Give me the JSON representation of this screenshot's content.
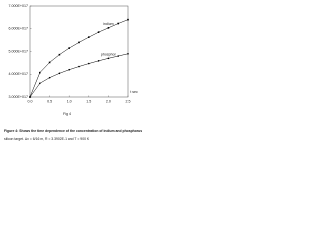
{
  "chart_data": {
    "type": "line",
    "x_label": "t sec",
    "annotation": "Fig 4",
    "caption": [
      "Figure 4: Shows the time dependence of the concentration of indium and phosphorus",
      "silicon target. Δx = 6/16 m, R = 3.3902E-1 and T = 900 K"
    ],
    "x": [
      0,
      0.25,
      0.5,
      0.75,
      1.0,
      1.25,
      1.5,
      1.75,
      2.0,
      2.25,
      2.5
    ],
    "series": [
      {
        "name": "indium",
        "color": "#000000",
        "marker": "square",
        "values": [
          3e+17,
          4.07e+17,
          4.52e+17,
          4.86e+17,
          5.15e+17,
          5.4e+17,
          5.63e+17,
          5.85e+17,
          6.04e+17,
          6.23e+17,
          6.4e+17
        ]
      },
      {
        "name": "phosphor",
        "color": "#000000",
        "marker": "circle",
        "values": [
          3e+17,
          3.6e+17,
          3.85e+17,
          4.04e+17,
          4.2e+17,
          4.34e+17,
          4.47e+17,
          4.59e+17,
          4.7e+17,
          4.8e+17,
          4.9e+17
        ]
      }
    ],
    "xlim": [
      0,
      2.5
    ],
    "xticks": [
      {
        "value": 0,
        "label": "0.0"
      },
      0.5,
      {
        "value": 1,
        "label": "1.0"
      },
      1.5,
      {
        "value": 2,
        "label": "2.0"
      },
      2.5
    ],
    "ylim": [
      3e+17,
      7e+17
    ],
    "yticks": [
      {
        "value": 3e+17,
        "label": "3.000E+017"
      },
      {
        "value": 4e+17,
        "label": "4.000E+017"
      },
      {
        "value": 5e+17,
        "label": "5.000E+017"
      },
      {
        "value": 6e+17,
        "label": "6.000E+017"
      },
      {
        "value": 7e+17,
        "label": "7.000E+017"
      }
    ],
    "grid": false
  }
}
